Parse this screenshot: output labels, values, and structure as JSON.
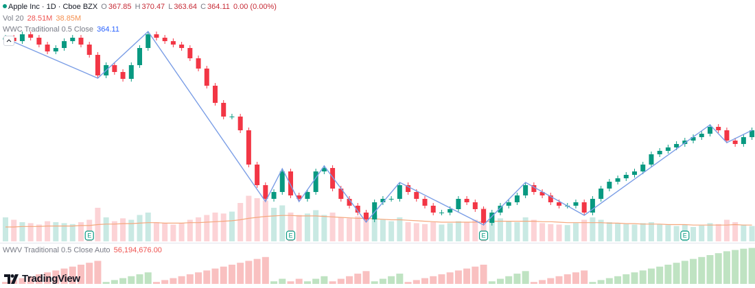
{
  "chart_data": {
    "type": "candlestick",
    "title": "Apple Inc · 1D · Cboe BZX",
    "ohlc_legend": {
      "open_label": "O",
      "open": 367.85,
      "high_label": "H",
      "high": 370.47,
      "low_label": "L",
      "low": 363.64,
      "close_label": "C",
      "close": 364.11,
      "change": "0.00 (0.00%)"
    },
    "ylim": [
      290,
      460
    ],
    "open": [
      431,
      432.5,
      430,
      435,
      432.5,
      427.5,
      422.5,
      425,
      430,
      432.5,
      427.5,
      420,
      405,
      412.5,
      407.5,
      402.5,
      412.5,
      425,
      435,
      432.5,
      430,
      427.5,
      425,
      417.5,
      410,
      397.5,
      385,
      375,
      375,
      365,
      340,
      325,
      315,
      320,
      335,
      317.5,
      315,
      320,
      335,
      337.5,
      322.5,
      315,
      310,
      305,
      300,
      312.5,
      315,
      315,
      325,
      320,
      315,
      310,
      305,
      305,
      307.5,
      315,
      312.5,
      307.5,
      297.5,
      305,
      310,
      312.5,
      317.5,
      325,
      320,
      317.5,
      312.5,
      310,
      310,
      312.5,
      305,
      315,
      322.5,
      327.5,
      330,
      332.5,
      335,
      340,
      347.5,
      350,
      352.5,
      355,
      357.5,
      360,
      362.5,
      367.5,
      365,
      357.5,
      355,
      360
    ],
    "high": [
      434.5,
      434.5,
      437,
      437,
      434.5,
      429.5,
      427,
      432,
      434.5,
      434.5,
      429.5,
      422,
      414.5,
      414.5,
      409.5,
      414.5,
      427,
      437,
      437,
      434.5,
      432,
      429.5,
      427,
      419.5,
      412,
      399.5,
      387,
      377,
      377,
      367,
      342,
      327,
      322,
      337,
      337,
      319.5,
      322,
      337,
      339.5,
      339.5,
      324.5,
      317,
      312,
      307,
      314.5,
      317,
      317,
      327,
      327,
      322,
      317,
      312,
      307,
      309.5,
      317,
      317,
      314.5,
      309.5,
      307,
      312,
      314.5,
      319.5,
      327,
      327,
      322,
      319.5,
      314.5,
      312,
      314.5,
      314.5,
      317,
      324.5,
      329.5,
      332,
      334.5,
      337,
      342,
      349.5,
      352,
      354.5,
      357,
      359.5,
      362,
      364.5,
      369.5,
      369.5,
      367,
      359.5,
      362,
      367
    ],
    "low": [
      429,
      428,
      428,
      430.5,
      425.5,
      420.5,
      420.5,
      423,
      428,
      425.5,
      418,
      403,
      403,
      405.5,
      400.5,
      400.5,
      410.5,
      423,
      430.5,
      428,
      425.5,
      423,
      415.5,
      408,
      395.5,
      383,
      373,
      373,
      363,
      338,
      323,
      313,
      313,
      318,
      315.5,
      313,
      313,
      318,
      333,
      320.5,
      313,
      308,
      303,
      298,
      298,
      310.5,
      313,
      313,
      318,
      313,
      308,
      303,
      303,
      303,
      305.5,
      310.5,
      305.5,
      295.5,
      295.5,
      303,
      308,
      310.5,
      315.5,
      318,
      315.5,
      310.5,
      308,
      308,
      308,
      303,
      303,
      313,
      320.5,
      325.5,
      328,
      330.5,
      333,
      338,
      345.5,
      348,
      350.5,
      353,
      355.5,
      358,
      360.5,
      363,
      355.5,
      353,
      353,
      358
    ],
    "close": [
      432.5,
      430,
      435,
      432.5,
      427.5,
      422.5,
      425,
      430,
      432.5,
      427.5,
      420,
      405,
      412.5,
      407.5,
      402.5,
      412.5,
      425,
      435,
      432.5,
      430,
      427.5,
      425,
      417.5,
      410,
      397.5,
      385,
      375,
      375,
      365,
      340,
      325,
      315,
      320,
      335,
      317.5,
      315,
      320,
      335,
      337.5,
      322.5,
      315,
      310,
      305,
      300,
      312.5,
      315,
      315,
      325,
      320,
      315,
      310,
      305,
      305,
      307.5,
      315,
      312.5,
      307.5,
      297.5,
      305,
      310,
      312.5,
      317.5,
      325,
      320,
      317.5,
      312.5,
      310,
      310,
      312.5,
      305,
      315,
      322.5,
      327.5,
      330,
      332.5,
      335,
      340,
      347.5,
      350,
      352.5,
      355,
      357.5,
      360,
      362.5,
      367.5,
      365,
      357.5,
      355,
      360,
      365
    ],
    "up_color": "#089981",
    "down_color": "#f23645",
    "zigzag": {
      "name": "WWC Traditional 0.5 Close",
      "last_value": 364.11,
      "color": "#7b9ee6",
      "index": [
        0,
        11,
        17,
        31,
        33,
        35,
        38,
        43,
        47,
        57,
        62,
        69,
        84,
        86,
        89
      ],
      "values": [
        432,
        403,
        437,
        313,
        337,
        313,
        339,
        298,
        327,
        296,
        327,
        303,
        369,
        356,
        365
      ]
    },
    "volume": {
      "name": "Vol 20",
      "value_label": "28.51M",
      "ma_label": "38.85M",
      "ma_color": "#f5a77c",
      "ylim": [
        0,
        100000000
      ],
      "values": [
        50000000,
        45000000,
        40000000,
        38000000,
        35000000,
        42000000,
        40000000,
        38000000,
        36000000,
        40000000,
        45000000,
        70000000,
        50000000,
        42000000,
        48000000,
        45000000,
        55000000,
        60000000,
        40000000,
        38000000,
        35000000,
        38000000,
        45000000,
        50000000,
        55000000,
        60000000,
        58000000,
        62000000,
        80000000,
        95000000,
        90000000,
        85000000,
        70000000,
        75000000,
        60000000,
        55000000,
        58000000,
        65000000,
        55000000,
        60000000,
        50000000,
        48000000,
        52000000,
        60000000,
        55000000,
        45000000,
        42000000,
        50000000,
        40000000,
        38000000,
        36000000,
        40000000,
        35000000,
        38000000,
        42000000,
        40000000,
        45000000,
        70000000,
        55000000,
        48000000,
        42000000,
        40000000,
        50000000,
        45000000,
        38000000,
        36000000,
        35000000,
        34000000,
        38000000,
        45000000,
        50000000,
        45000000,
        40000000,
        38000000,
        36000000,
        35000000,
        38000000,
        40000000,
        36000000,
        34000000,
        32000000,
        35000000,
        30000000,
        33000000,
        38000000,
        36000000,
        45000000,
        40000000,
        35000000,
        32000000
      ],
      "ma": [
        30000000,
        30000000,
        31000000,
        31000000,
        31000000,
        32000000,
        32000000,
        32000000,
        32000000,
        33000000,
        33000000,
        35000000,
        36000000,
        36000000,
        37000000,
        37000000,
        38000000,
        39000000,
        39000000,
        38000000,
        38000000,
        38000000,
        39000000,
        39000000,
        40000000,
        41000000,
        42000000,
        43000000,
        45000000,
        48000000,
        50000000,
        52000000,
        53000000,
        54000000,
        54000000,
        53000000,
        53000000,
        53000000,
        52000000,
        51000000,
        50000000,
        49000000,
        48000000,
        48000000,
        47000000,
        46000000,
        45000000,
        45000000,
        44000000,
        43000000,
        42000000,
        41000000,
        40000000,
        40000000,
        40000000,
        40000000,
        40000000,
        41000000,
        42000000,
        42000000,
        42000000,
        42000000,
        42000000,
        42000000,
        41000000,
        41000000,
        40000000,
        39000000,
        39000000,
        39000000,
        39000000,
        39000000,
        38000000,
        38000000,
        37000000,
        37000000,
        36000000,
        36000000,
        36000000,
        35000000,
        35000000,
        35000000,
        34000000,
        34000000,
        34000000,
        34000000,
        34000000,
        35000000,
        34000000,
        34000000
      ]
    },
    "earnings": {
      "label": "E",
      "index": [
        10,
        34,
        57,
        81
      ]
    },
    "wwv": {
      "name": "WWV Traditional 0.5 Close Auto",
      "value_label": "56,194,676.00",
      "ylim": [
        0,
        60000000
      ],
      "values": [
        3000000,
        6000000,
        9000000,
        12000000,
        15000000,
        18000000,
        21000000,
        24000000,
        27000000,
        30000000,
        33000000,
        36000000,
        3000000,
        6000000,
        9000000,
        12000000,
        15000000,
        18000000,
        3000000,
        6000000,
        9000000,
        12000000,
        15000000,
        18000000,
        21000000,
        24000000,
        27000000,
        30000000,
        33000000,
        36000000,
        39000000,
        42000000,
        4000000,
        8000000,
        4000000,
        8000000,
        4000000,
        8000000,
        12000000,
        4000000,
        8000000,
        12000000,
        16000000,
        20000000,
        4000000,
        8000000,
        12000000,
        16000000,
        3000000,
        6000000,
        9000000,
        12000000,
        15000000,
        18000000,
        21000000,
        24000000,
        27000000,
        30000000,
        4000000,
        8000000,
        12000000,
        16000000,
        20000000,
        3000000,
        6000000,
        9000000,
        12000000,
        15000000,
        18000000,
        21000000,
        3000000,
        6000000,
        9000000,
        12000000,
        15000000,
        18000000,
        21000000,
        24000000,
        27000000,
        30000000,
        33000000,
        36000000,
        39000000,
        42000000,
        45000000,
        48000000,
        51000000,
        53000000,
        55000000,
        56194676
      ],
      "colors": [
        "#f9c0c0",
        "#f9c0c0",
        "#f9c0c0",
        "#f9c0c0",
        "#f9c0c0",
        "#f9c0c0",
        "#f9c0c0",
        "#f9c0c0",
        "#f9c0c0",
        "#f9c0c0",
        "#f9c0c0",
        "#f9c0c0",
        "#bfe3c2",
        "#bfe3c2",
        "#bfe3c2",
        "#bfe3c2",
        "#bfe3c2",
        "#bfe3c2",
        "#f9c0c0",
        "#f9c0c0",
        "#f9c0c0",
        "#f9c0c0",
        "#f9c0c0",
        "#f9c0c0",
        "#f9c0c0",
        "#f9c0c0",
        "#f9c0c0",
        "#f9c0c0",
        "#f9c0c0",
        "#f9c0c0",
        "#f9c0c0",
        "#f9c0c0",
        "#bfe3c2",
        "#bfe3c2",
        "#f9c0c0",
        "#f9c0c0",
        "#bfe3c2",
        "#bfe3c2",
        "#bfe3c2",
        "#f9c0c0",
        "#f9c0c0",
        "#f9c0c0",
        "#f9c0c0",
        "#f9c0c0",
        "#bfe3c2",
        "#bfe3c2",
        "#bfe3c2",
        "#bfe3c2",
        "#f9c0c0",
        "#f9c0c0",
        "#f9c0c0",
        "#f9c0c0",
        "#f9c0c0",
        "#f9c0c0",
        "#f9c0c0",
        "#f9c0c0",
        "#f9c0c0",
        "#f9c0c0",
        "#bfe3c2",
        "#bfe3c2",
        "#bfe3c2",
        "#bfe3c2",
        "#bfe3c2",
        "#f9c0c0",
        "#f9c0c0",
        "#f9c0c0",
        "#f9c0c0",
        "#f9c0c0",
        "#f9c0c0",
        "#f9c0c0",
        "#bfe3c2",
        "#bfe3c2",
        "#bfe3c2",
        "#bfe3c2",
        "#bfe3c2",
        "#bfe3c2",
        "#bfe3c2",
        "#bfe3c2",
        "#bfe3c2",
        "#bfe3c2",
        "#bfe3c2",
        "#bfe3c2",
        "#bfe3c2",
        "#bfe3c2",
        "#bfe3c2",
        "#bfe3c2",
        "#bfe3c2",
        "#bfe3c2",
        "#bfe3c2",
        "#bfe3c2"
      ]
    },
    "branding": "TradingView"
  }
}
